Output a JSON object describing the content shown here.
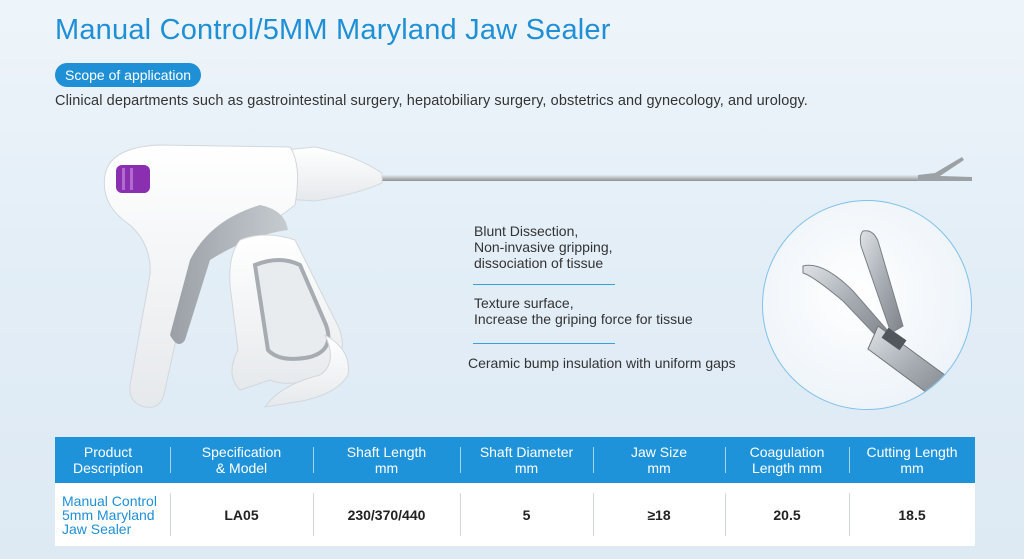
{
  "title": "Manual Control/5MM Maryland Jaw Sealer",
  "scope": {
    "badge_label": "Scope of application",
    "description": "Clinical departments such as gastrointestinal surgery, hepatobiliary surgery, obstetrics and gynecology, and urology."
  },
  "features": [
    {
      "line1": "Blunt Dissection,",
      "line2": "Non-invasive gripping,",
      "line3": "dissociation of tissue"
    },
    {
      "line1": "Texture surface,",
      "line2": "Increase the griping force for tissue"
    },
    {
      "line1": "Ceramic bump insulation with uniform gaps"
    }
  ],
  "table": {
    "headers": [
      {
        "l1": "Product",
        "l2": "Description"
      },
      {
        "l1": "Specification",
        "l2": "& Model"
      },
      {
        "l1": "Shaft Length",
        "l2": "mm"
      },
      {
        "l1": "Shaft Diameter",
        "l2": "mm"
      },
      {
        "l1": "Jaw Size",
        "l2": "mm"
      },
      {
        "l1": "Coagulation",
        "l2": "Length mm"
      },
      {
        "l1": "Cutting Length",
        "l2": "mm"
      }
    ],
    "row": {
      "product": {
        "l1": "Manual Control",
        "l2": "5mm Maryland",
        "l3": "Jaw Sealer"
      },
      "model": "LA05",
      "shaft_length": "230/370/440",
      "shaft_diameter": "5",
      "jaw_size": "≥18",
      "coagulation_length": "20.5",
      "cutting_length": "18.5"
    }
  },
  "colors": {
    "accent": "#1f8fd6",
    "header_bg": "#1f93d9",
    "trigger_purple": "#8a2fb0"
  }
}
